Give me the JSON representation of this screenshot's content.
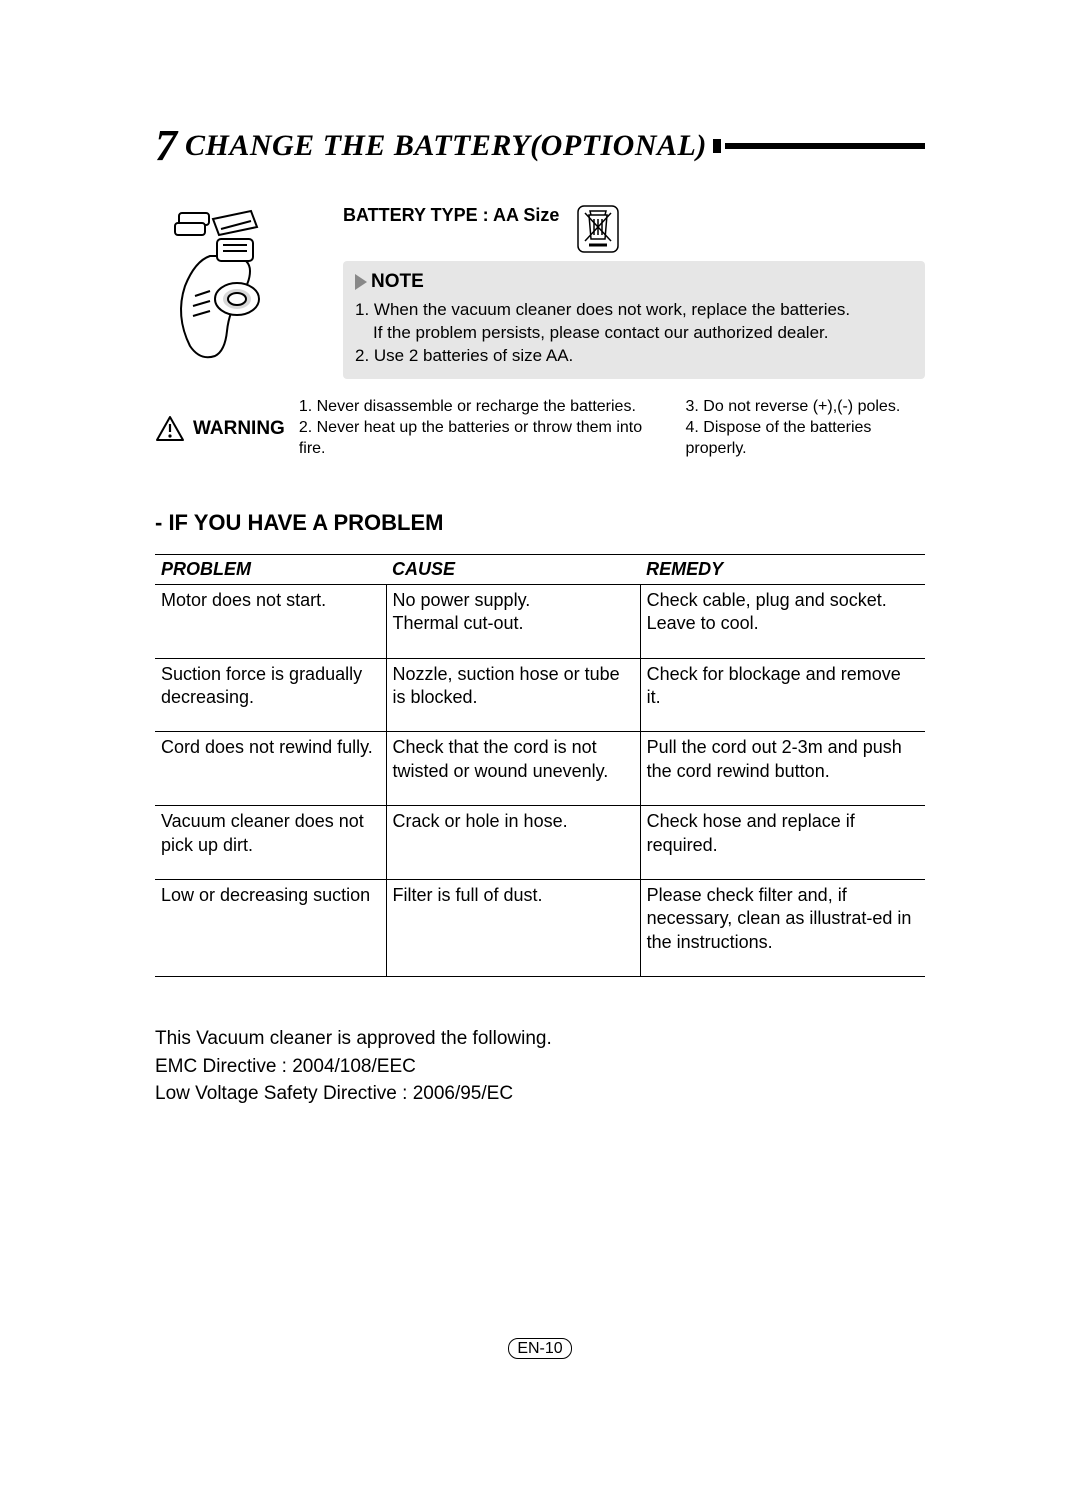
{
  "section": {
    "number": "7",
    "title": "CHANGE THE BATTERY(OPTIONAL)"
  },
  "battery": {
    "type_label": "BATTERY TYPE : AA Size",
    "note_title": "NOTE",
    "note_line1": "1. When the vacuum cleaner does not work, replace the batteries.",
    "note_line1b": "If the problem persists, please contact our authorized dealer.",
    "note_line2": "2. Use 2 batteries of size AA."
  },
  "warning": {
    "label": "WARNING",
    "col1_line1": "1. Never disassemble or recharge the batteries.",
    "col1_line2": "2. Never heat up the batteries or throw them into fire.",
    "col2_line1": "3. Do not reverse (+),(-) poles.",
    "col2_line2": "4. Dispose of the batteries properly."
  },
  "troubleshoot": {
    "heading": "- IF YOU HAVE A PROBLEM",
    "headers": {
      "c1": "PROBLEM",
      "c2": "CAUSE",
      "c3": "REMEDY"
    },
    "rows": [
      {
        "p": "Motor does not start.",
        "c": "No power supply.\nThermal cut-out.",
        "r": "Check cable, plug and socket.\nLeave to cool."
      },
      {
        "p": "Suction force is gradually decreasing.",
        "c": "Nozzle, suction hose or tube is blocked.",
        "r": "Check for blockage and remove it."
      },
      {
        "p": "Cord does not rewind fully.",
        "c": "Check that the cord is not twisted or wound unevenly.",
        "r": "Pull the cord out 2-3m and push the cord rewind button."
      },
      {
        "p": "Vacuum cleaner does not pick up dirt.",
        "c": "Crack or hole in hose.",
        "r": "Check hose and replace if required."
      },
      {
        "p": "Low or decreasing suction",
        "c": "Filter is  full of dust.",
        "r": "Please check filter and, if necessary, clean as illustrat-ed in the instructions."
      }
    ]
  },
  "directives": {
    "line1": "This Vacuum cleaner is approved the following.",
    "line2": "EMC Directive : 2004/108/EEC",
    "line3": "Low Voltage Safety Directive : 2006/95/EC"
  },
  "page_number": "EN-10",
  "colors": {
    "text": "#000000",
    "note_bg": "#e6e6e6",
    "page_bg": "#ffffff"
  }
}
